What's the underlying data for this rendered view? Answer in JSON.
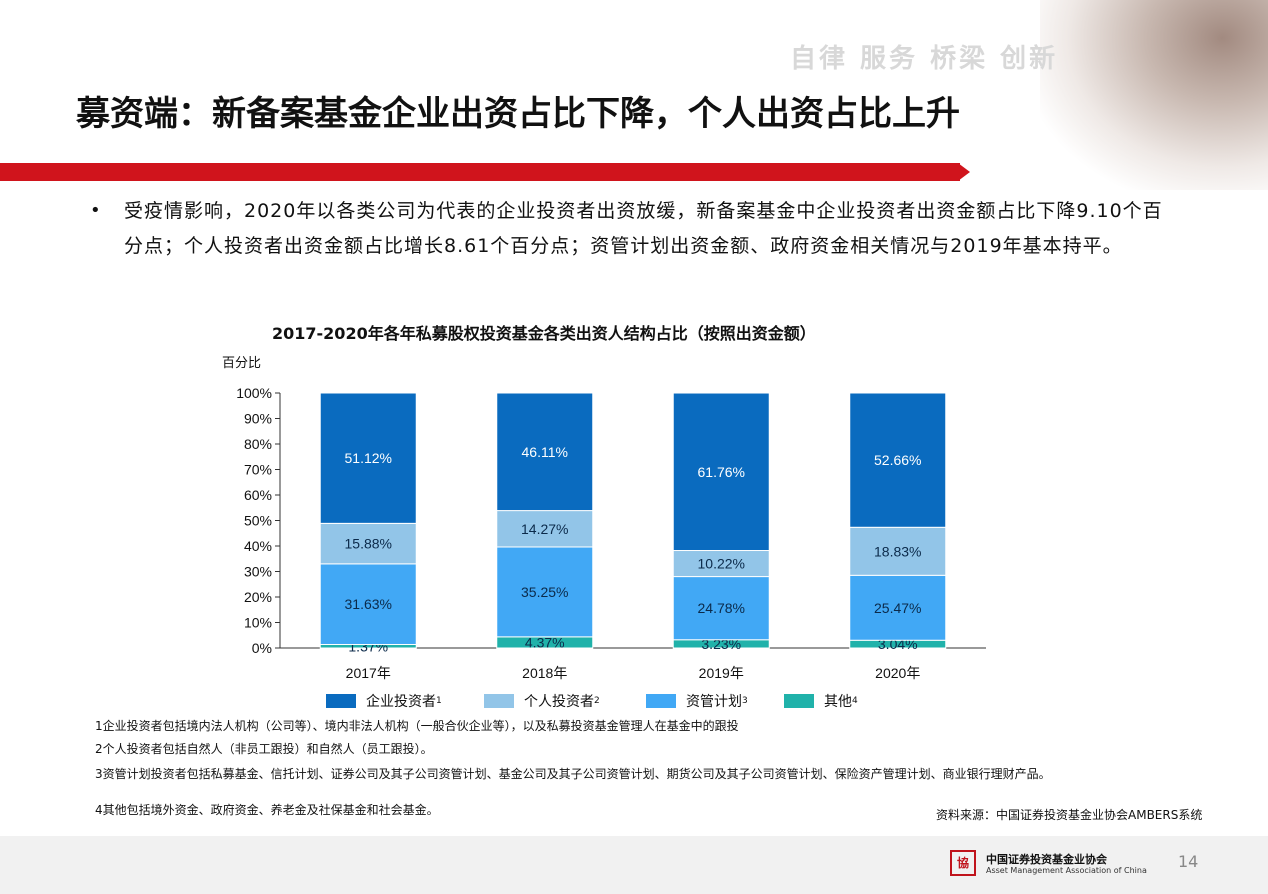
{
  "header": {
    "slogan": "自律 服务 桥梁 创新",
    "title": "募资端：新备案基金企业出资占比下降，个人出资占比上升"
  },
  "bullet": {
    "dot": "•",
    "text": "受疫情影响，2020年以各类公司为代表的企业投资者出资放缓，新备案基金中企业投资者出资金额占比下降9.10个百分点；个人投资者出资金额占比增长8.61个百分点；资管计划出资金额、政府资金相关情况与2019年基本持平。"
  },
  "chart_data": {
    "type": "bar",
    "stacked": true,
    "title": "2017-2020年各年私募股权投资基金各类出资人结构占比（按照出资金额）",
    "ylabel": "百分比",
    "ylim": [
      0,
      100
    ],
    "yticks": [
      "0%",
      "10%",
      "20%",
      "30%",
      "40%",
      "50%",
      "60%",
      "70%",
      "80%",
      "90%",
      "100%"
    ],
    "categories": [
      "2017年",
      "2018年",
      "2019年",
      "2020年"
    ],
    "series": [
      {
        "name": "其他",
        "footnote": "4",
        "color": "#20b2aa",
        "values": [
          1.37,
          4.37,
          3.23,
          3.04
        ],
        "labels": [
          "1.37%",
          "4.37%",
          "3.23%",
          "3.04%"
        ]
      },
      {
        "name": "资管计划",
        "footnote": "3",
        "color": "#41a8f5",
        "values": [
          31.63,
          35.25,
          24.78,
          25.47
        ],
        "labels": [
          "31.63%",
          "35.25%",
          "24.78%",
          "25.47%"
        ]
      },
      {
        "name": "个人投资者",
        "footnote": "2",
        "color": "#92c5e8",
        "values": [
          15.88,
          14.27,
          10.22,
          18.83
        ],
        "labels": [
          "15.88%",
          "14.27%",
          "10.22%",
          "18.83%"
        ]
      },
      {
        "name": "企业投资者",
        "footnote": "1",
        "color": "#0a6bbf",
        "values": [
          51.12,
          46.11,
          61.76,
          52.66
        ],
        "labels": [
          "51.12%",
          "46.11%",
          "61.76%",
          "52.66%"
        ]
      }
    ],
    "legend_order": [
      "企业投资者",
      "个人投资者",
      "资管计划",
      "其他"
    ],
    "legend_position": "bottom"
  },
  "notes": [
    "1企业投资者包括境内法人机构（公司等）、境内非法人机构（一般合伙企业等），以及私募投资基金管理人在基金中的跟投",
    "2个人投资者包括自然人（非员工跟投）和自然人（员工跟投）。",
    "3资管计划投资者包括私募基金、信托计划、证券公司及其子公司资管计划、基金公司及其子公司资管计划、期货公司及其子公司资管计划、保险资产管理计划、商业银行理财产品。",
    "4其他包括境外资金、政府资金、养老金及社保基金和社会基金。"
  ],
  "source": "资料来源：中国证券投资基金业协会AMBERS系统",
  "footer": {
    "logo_text": "協",
    "org_cn": "中国证券投资基金业协会",
    "org_en": "Asset Management Association of China",
    "page": "14"
  }
}
